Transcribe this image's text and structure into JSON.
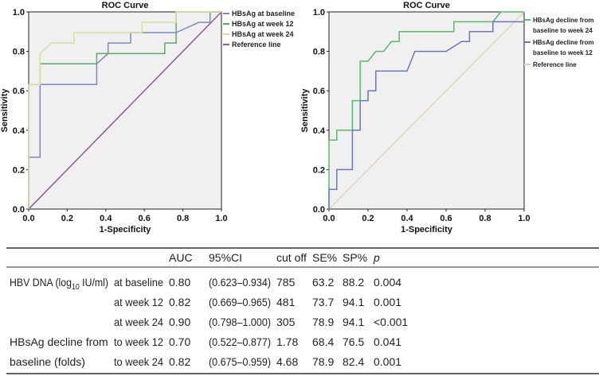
{
  "chart_data": [
    {
      "type": "line",
      "title": "ROC Curve",
      "xlabel": "1-Specificity",
      "ylabel": "Sensitivity",
      "xlim": [
        0,
        1
      ],
      "ylim": [
        0,
        1
      ],
      "xticks": [
        "0.0",
        "0.2",
        "0.4",
        "0.6",
        "0.8",
        "1.0"
      ],
      "yticks": [
        "0.0",
        "0.2",
        "0.4",
        "0.6",
        "0.8",
        "1.0"
      ],
      "legend": "right",
      "grid": false,
      "series": [
        {
          "name": "HBsAg at baseline",
          "color": "#7b8bc2",
          "x": [
            0,
            0,
            0.059,
            0.059,
            0.353,
            0.353,
            0.412,
            0.412,
            0.529,
            0.529,
            0.765,
            0.882,
            0.941,
            0.941,
            1
          ],
          "y": [
            0,
            0.263,
            0.263,
            0.632,
            0.632,
            0.737,
            0.789,
            0.842,
            0.842,
            0.895,
            0.895,
            0.947,
            0.947,
            1,
            1
          ]
        },
        {
          "name": "HBsAg at week 12",
          "color": "#5aa96c",
          "x": [
            0,
            0,
            0.059,
            0.059,
            0.353,
            0.353,
            0.706,
            0.706,
            0.765,
            0.765,
            1
          ],
          "y": [
            0,
            0.632,
            0.632,
            0.737,
            0.737,
            0.789,
            0.789,
            0.842,
            0.842,
            1,
            1
          ]
        },
        {
          "name": "HBsAg at week 24",
          "color": "#d9dca2",
          "x": [
            0,
            0,
            0.059,
            0.059,
            0.118,
            0.235,
            0.235,
            0.588,
            0.588,
            0.765,
            0.765,
            1
          ],
          "y": [
            0,
            0.632,
            0.632,
            0.789,
            0.842,
            0.842,
            0.895,
            0.895,
            0.947,
            0.947,
            1,
            1
          ]
        },
        {
          "name": "Reference line",
          "color": "#8a5a98",
          "x": [
            0,
            1
          ],
          "y": [
            0,
            1
          ]
        }
      ]
    },
    {
      "type": "line",
      "title": "ROC Curve",
      "xlabel": "1-Specificity",
      "ylabel": "Sensitivity",
      "xlim": [
        0,
        1
      ],
      "ylim": [
        0,
        1
      ],
      "xticks": [
        "0.0",
        "0.2",
        "0.4",
        "0.6",
        "0.8",
        "1.0"
      ],
      "yticks": [
        "0.0",
        "0.2",
        "0.4",
        "0.6",
        "0.8",
        "1.0"
      ],
      "legend": "right",
      "grid": false,
      "series": [
        {
          "name": "HBsAg decline from baseline to week 24",
          "legend_lines": [
            "HBsAg decline from",
            "baseline to week 24"
          ],
          "color": "#5cb86c",
          "x": [
            0,
            0,
            0.04,
            0.04,
            0.12,
            0.12,
            0.16,
            0.16,
            0.2,
            0.24,
            0.28,
            0.32,
            0.36,
            0.36,
            0.64,
            0.64,
            0.84,
            0.88,
            1
          ],
          "y": [
            0,
            0.35,
            0.35,
            0.4,
            0.4,
            0.55,
            0.55,
            0.75,
            0.75,
            0.8,
            0.8,
            0.85,
            0.85,
            0.9,
            0.9,
            0.95,
            0.95,
            1,
            1
          ]
        },
        {
          "name": "HBsAg decline from baseline to week 12",
          "legend_lines": [
            "HBsAg decline from",
            "baseline to week 12"
          ],
          "color": "#6a78b6",
          "x": [
            0,
            0,
            0.04,
            0.04,
            0.12,
            0.12,
            0.16,
            0.16,
            0.2,
            0.2,
            0.24,
            0.24,
            0.4,
            0.44,
            0.6,
            0.68,
            0.72,
            0.72,
            0.84,
            0.84,
            1
          ],
          "y": [
            0,
            0.1,
            0.1,
            0.2,
            0.2,
            0.4,
            0.4,
            0.55,
            0.55,
            0.6,
            0.6,
            0.7,
            0.7,
            0.8,
            0.8,
            0.85,
            0.85,
            0.9,
            0.9,
            0.95,
            0.95
          ]
        },
        {
          "name": "Reference line",
          "legend_lines": [
            "Reference line"
          ],
          "color": "#dcd8b2",
          "x": [
            0,
            1
          ],
          "y": [
            0,
            1
          ]
        }
      ]
    }
  ],
  "table": {
    "headers": [
      "",
      "",
      "AUC",
      "95%CI",
      "cut off",
      "SE%",
      "SP%",
      "p"
    ],
    "rows": [
      [
        "HBV DNA (log10 IU/ml)",
        "at baseline",
        "0.80",
        "(0.623–0.934)",
        "785",
        "63.2",
        "88.2",
        "0.004"
      ],
      [
        "",
        "at week 12",
        "0.82",
        "(0.669–0.965)",
        "481",
        "73.7",
        "94.1",
        "0.001"
      ],
      [
        "",
        "at week 24",
        "0.90",
        "(0.798–1.000)",
        "305",
        "78.9",
        "94.1",
        "<0.001"
      ],
      [
        "HBsAg decline from",
        "to week 12",
        "0.70",
        "(0.522–0.877)",
        "1.78",
        "68.4",
        "76.5",
        "0.041"
      ],
      [
        "baseline (folds)",
        "to week 24",
        "0.82",
        "(0.675–0.959)",
        "4.68",
        "78.9",
        "82.4",
        "0.001"
      ]
    ],
    "hbv_label_parts": [
      "HBV DNA (log",
      "10",
      " IU/ml)"
    ]
  }
}
